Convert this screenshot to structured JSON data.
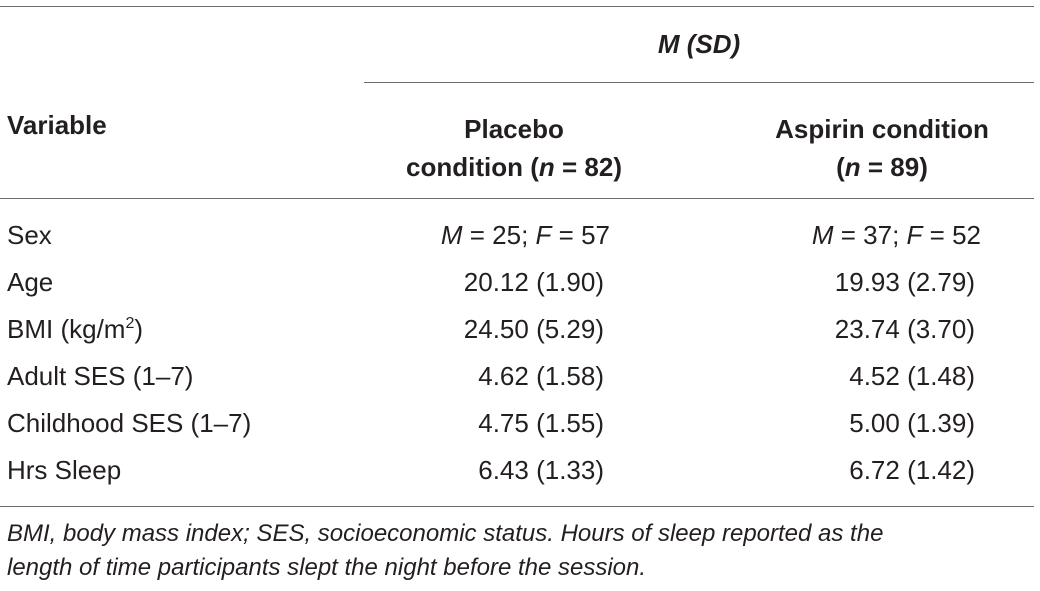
{
  "header": {
    "group": "M (SD)",
    "variable": "Variable",
    "placebo_line1": "Placebo",
    "placebo_line2_prefix": "condition (",
    "placebo_n_label": "n",
    "placebo_n_value": " = 82)",
    "aspirin_line1": "Aspirin condition",
    "aspirin_line2_prefix": "(",
    "aspirin_n_label": "n",
    "aspirin_n_value": " = 89)"
  },
  "rows": [
    {
      "label": "Sex",
      "placebo": {
        "m": "M",
        "m_val": " = 25; ",
        "f": "F",
        "f_val": " = 57"
      },
      "aspirin": {
        "m": "M",
        "m_val": " = 37; ",
        "f": "F",
        "f_val": " = 52"
      }
    },
    {
      "label": "Age",
      "placebo": "20.12 (1.90)",
      "aspirin": "19.93 (2.79)"
    },
    {
      "label": "BMI (kg/m",
      "label_sup": "2",
      "label_end": ")",
      "placebo": "24.50 (5.29)",
      "aspirin": "23.74 (3.70)"
    },
    {
      "label": "Adult SES (1–7)",
      "placebo": "4.62 (1.58)",
      "aspirin": "4.52 (1.48)"
    },
    {
      "label": "Childhood SES (1–7)",
      "placebo": "4.75 (1.55)",
      "aspirin": "5.00 (1.39)"
    },
    {
      "label": "Hrs Sleep",
      "placebo": "6.43 (1.33)",
      "aspirin": "6.72 (1.42)"
    }
  ],
  "footnote": {
    "line1": "BMI, body mass index; SES, socioeconomic status. Hours of sleep reported as the",
    "line2": "length of time participants slept the night before the session."
  }
}
